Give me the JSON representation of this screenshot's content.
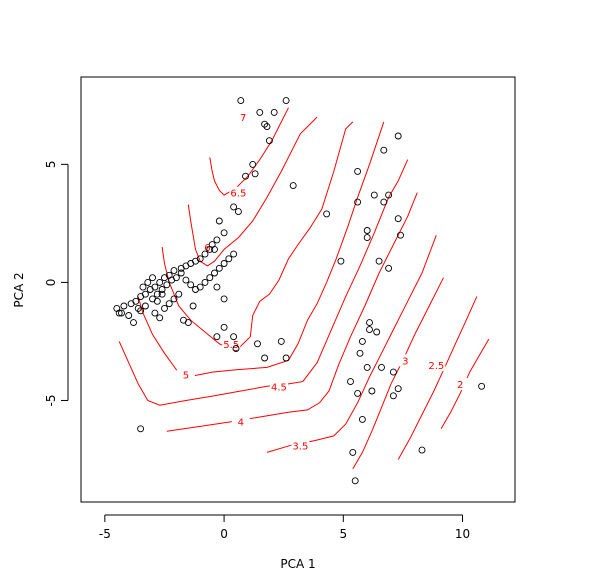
{
  "chart_data": {
    "type": "scatter",
    "title": "",
    "xlabel": "PCA 1",
    "ylabel": "PCA 2",
    "xlim": [
      -6.0,
      12.2
    ],
    "ylim": [
      -9.3,
      8.7
    ],
    "x_ticks": [
      -5,
      0,
      5,
      10
    ],
    "y_ticks": [
      -5,
      0,
      5
    ],
    "x_tick_labels": [
      "-5",
      "0",
      "5",
      "10"
    ],
    "y_tick_labels": [
      "-5",
      "0",
      "5"
    ],
    "grid": false,
    "point_color": "#000000",
    "contour_color": "#ff0000",
    "points": [
      [
        0.7,
        7.7
      ],
      [
        2.6,
        7.7
      ],
      [
        1.5,
        7.2
      ],
      [
        2.1,
        7.2
      ],
      [
        1.8,
        6.6
      ],
      [
        1.7,
        6.7
      ],
      [
        7.3,
        6.2
      ],
      [
        6.7,
        5.6
      ],
      [
        1.9,
        6.0
      ],
      [
        1.2,
        5.0
      ],
      [
        1.3,
        4.6
      ],
      [
        0.9,
        4.5
      ],
      [
        2.9,
        4.1
      ],
      [
        5.6,
        4.7
      ],
      [
        6.3,
        3.7
      ],
      [
        6.9,
        3.7
      ],
      [
        5.6,
        3.4
      ],
      [
        6.7,
        3.4
      ],
      [
        0.4,
        3.2
      ],
      [
        0.6,
        3.0
      ],
      [
        -0.2,
        2.6
      ],
      [
        4.3,
        2.9
      ],
      [
        7.3,
        2.7
      ],
      [
        6.0,
        2.2
      ],
      [
        6.0,
        1.9
      ],
      [
        7.4,
        2.0
      ],
      [
        0.0,
        2.1
      ],
      [
        -0.3,
        1.8
      ],
      [
        -0.5,
        1.6
      ],
      [
        -0.4,
        1.4
      ],
      [
        -0.6,
        1.4
      ],
      [
        -0.8,
        1.2
      ],
      [
        -1.0,
        1.0
      ],
      [
        -1.2,
        0.9
      ],
      [
        -1.4,
        0.8
      ],
      [
        -1.6,
        0.7
      ],
      [
        -1.8,
        0.6
      ],
      [
        -2.1,
        0.5
      ],
      [
        -2.3,
        0.3
      ],
      [
        -2.5,
        0.2
      ],
      [
        -2.7,
        0.0
      ],
      [
        -2.9,
        -0.2
      ],
      [
        -3.1,
        -0.3
      ],
      [
        -3.3,
        -0.5
      ],
      [
        -3.5,
        -0.6
      ],
      [
        -3.7,
        -0.8
      ],
      [
        -3.9,
        -0.9
      ],
      [
        -4.2,
        -1.0
      ],
      [
        -4.5,
        -1.1
      ],
      [
        -4.4,
        -1.3
      ],
      [
        -4.0,
        -1.4
      ],
      [
        -3.8,
        -1.7
      ],
      [
        -3.5,
        -1.2
      ],
      [
        -3.3,
        -1.0
      ],
      [
        -3.0,
        -0.7
      ],
      [
        -2.8,
        -0.5
      ],
      [
        -2.6,
        -0.3
      ],
      [
        -2.4,
        -0.1
      ],
      [
        -2.2,
        0.1
      ],
      [
        -2.0,
        0.2
      ],
      [
        -1.8,
        0.4
      ],
      [
        -1.6,
        0.1
      ],
      [
        -1.4,
        -0.1
      ],
      [
        -1.2,
        -0.3
      ],
      [
        -1.0,
        -0.2
      ],
      [
        -0.8,
        0.0
      ],
      [
        -0.6,
        0.2
      ],
      [
        -0.4,
        0.4
      ],
      [
        -0.2,
        0.6
      ],
      [
        0.0,
        0.8
      ],
      [
        0.2,
        1.0
      ],
      [
        0.4,
        1.2
      ],
      [
        -2.9,
        -1.3
      ],
      [
        -2.7,
        -1.5
      ],
      [
        -2.5,
        -1.1
      ],
      [
        -2.3,
        -0.9
      ],
      [
        -2.1,
        -0.7
      ],
      [
        -1.9,
        -0.5
      ],
      [
        -3.4,
        -0.2
      ],
      [
        -3.2,
        0.0
      ],
      [
        -3.0,
        0.2
      ],
      [
        -2.8,
        -0.8
      ],
      [
        -1.7,
        -1.6
      ],
      [
        -1.5,
        -1.7
      ],
      [
        -1.3,
        -1.0
      ],
      [
        0.0,
        -0.7
      ],
      [
        -0.3,
        -0.2
      ],
      [
        0.0,
        -1.9
      ],
      [
        -0.3,
        -2.3
      ],
      [
        0.4,
        -2.3
      ],
      [
        0.5,
        -2.8
      ],
      [
        1.4,
        -2.6
      ],
      [
        1.7,
        -3.2
      ],
      [
        2.4,
        -2.5
      ],
      [
        2.6,
        -3.2
      ],
      [
        4.9,
        0.9
      ],
      [
        6.5,
        0.9
      ],
      [
        6.9,
        0.6
      ],
      [
        6.1,
        -1.7
      ],
      [
        6.1,
        -2.0
      ],
      [
        6.4,
        -2.1
      ],
      [
        5.8,
        -2.5
      ],
      [
        5.7,
        -3.0
      ],
      [
        6.0,
        -3.6
      ],
      [
        6.6,
        -3.6
      ],
      [
        7.1,
        -3.8
      ],
      [
        5.3,
        -4.2
      ],
      [
        5.6,
        -4.7
      ],
      [
        6.2,
        -4.6
      ],
      [
        7.3,
        -4.5
      ],
      [
        7.1,
        -4.8
      ],
      [
        5.8,
        -5.8
      ],
      [
        5.4,
        -7.2
      ],
      [
        5.5,
        -8.4
      ],
      [
        8.3,
        -7.1
      ],
      [
        10.8,
        -4.4
      ],
      [
        -3.5,
        -6.2
      ],
      [
        -4.3,
        -1.3
      ],
      [
        -3.6,
        -1.1
      ],
      [
        -2.6,
        -0.5
      ]
    ],
    "contour_levels": [
      "2",
      "2.5",
      "3",
      "3.5",
      "4",
      "4.5",
      "5",
      "5.5",
      "6",
      "6.5",
      "7"
    ],
    "contours": [
      {
        "level": "7",
        "path": [
          [
            0.6,
            7.2
          ],
          [
            1.0,
            6.8
          ]
        ]
      },
      {
        "level": "6.5",
        "path": [
          [
            -0.6,
            5.3
          ],
          [
            -0.5,
            4.7
          ],
          [
            -0.4,
            4.3
          ],
          [
            -0.2,
            3.9
          ],
          [
            0.0,
            3.7
          ],
          [
            0.5,
            4.0
          ],
          [
            1.0,
            4.5
          ],
          [
            1.5,
            5.2
          ],
          [
            2.0,
            6.0
          ],
          [
            2.7,
            7.4
          ]
        ]
      },
      {
        "level": "6",
        "path": [
          [
            -1.5,
            3.3
          ],
          [
            -1.4,
            2.6
          ],
          [
            -1.3,
            2.0
          ],
          [
            -1.2,
            1.4
          ],
          [
            -1.0,
            0.9
          ],
          [
            -0.7,
            0.7
          ],
          [
            -0.4,
            0.9
          ],
          [
            0.0,
            1.4
          ],
          [
            0.6,
            1.9
          ],
          [
            1.2,
            2.6
          ],
          [
            1.8,
            3.6
          ],
          [
            2.4,
            4.7
          ],
          [
            3.2,
            6.3
          ],
          [
            3.9,
            7.0
          ]
        ]
      },
      {
        "level": "5.5",
        "path": [
          [
            -2.6,
            1.5
          ],
          [
            -2.5,
            0.8
          ],
          [
            -2.3,
            0.0
          ],
          [
            -1.9,
            -1.0
          ],
          [
            -1.4,
            -1.6
          ],
          [
            -0.8,
            -2.1
          ],
          [
            -0.2,
            -2.6
          ],
          [
            0.5,
            -2.9
          ],
          [
            1.1,
            -2.3
          ],
          [
            1.2,
            -1.4
          ],
          [
            1.5,
            -0.8
          ],
          [
            1.9,
            -0.5
          ],
          [
            2.3,
            0.1
          ],
          [
            2.7,
            1.0
          ],
          [
            3.1,
            1.6
          ],
          [
            3.6,
            2.3
          ],
          [
            4.1,
            3.1
          ],
          [
            4.6,
            4.7
          ],
          [
            5.1,
            6.5
          ],
          [
            5.4,
            6.8
          ]
        ]
      },
      {
        "level": "5",
        "path": [
          [
            -3.6,
            -0.6
          ],
          [
            -3.4,
            -1.3
          ],
          [
            -3.0,
            -2.2
          ],
          [
            -2.5,
            -3.0
          ],
          [
            -2.0,
            -3.7
          ],
          [
            -1.5,
            -4.0
          ],
          [
            -0.5,
            -3.8
          ],
          [
            0.5,
            -3.7
          ],
          [
            1.8,
            -3.6
          ],
          [
            2.7,
            -3.3
          ],
          [
            3.1,
            -2.6
          ],
          [
            3.5,
            -1.6
          ],
          [
            3.9,
            -0.9
          ],
          [
            4.3,
            0.0
          ],
          [
            4.7,
            1.0
          ],
          [
            5.2,
            2.4
          ],
          [
            5.6,
            3.6
          ],
          [
            6.1,
            5.0
          ],
          [
            6.7,
            6.8
          ]
        ]
      },
      {
        "level": "4.5",
        "path": [
          [
            -4.4,
            -2.5
          ],
          [
            -4.0,
            -3.4
          ],
          [
            -3.6,
            -4.3
          ],
          [
            -3.2,
            -5.0
          ],
          [
            -2.7,
            -5.2
          ],
          [
            -1.6,
            -5.0
          ],
          [
            -0.4,
            -4.8
          ],
          [
            0.7,
            -4.6
          ],
          [
            1.8,
            -4.4
          ],
          [
            2.7,
            -4.3
          ],
          [
            3.3,
            -4.2
          ],
          [
            3.9,
            -3.4
          ],
          [
            4.5,
            -2.0
          ],
          [
            5.1,
            -0.6
          ],
          [
            5.7,
            0.7
          ],
          [
            6.3,
            2.1
          ],
          [
            6.9,
            3.6
          ],
          [
            7.3,
            4.3
          ],
          [
            7.7,
            5.2
          ]
        ]
      },
      {
        "level": "4",
        "path": [
          [
            -2.4,
            -6.3
          ],
          [
            -1.0,
            -6.1
          ],
          [
            0.3,
            -5.9
          ],
          [
            1.5,
            -5.7
          ],
          [
            2.7,
            -5.5
          ],
          [
            3.5,
            -5.4
          ],
          [
            4.0,
            -5.1
          ],
          [
            4.4,
            -4.6
          ],
          [
            4.8,
            -3.5
          ],
          [
            5.3,
            -2.3
          ],
          [
            5.9,
            -1.0
          ],
          [
            6.5,
            0.4
          ],
          [
            7.1,
            1.6
          ],
          [
            7.7,
            2.8
          ],
          [
            8.1,
            3.8
          ]
        ]
      },
      {
        "level": "3.5",
        "path": [
          [
            1.8,
            -7.2
          ],
          [
            2.8,
            -6.9
          ],
          [
            3.8,
            -6.7
          ],
          [
            4.6,
            -6.5
          ],
          [
            5.1,
            -6.0
          ],
          [
            5.6,
            -5.1
          ],
          [
            6.1,
            -4.0
          ],
          [
            6.6,
            -3.0
          ],
          [
            7.1,
            -2.0
          ],
          [
            7.7,
            -0.8
          ],
          [
            8.3,
            0.4
          ],
          [
            8.9,
            2.0
          ]
        ]
      },
      {
        "level": "3",
        "path": [
          [
            5.4,
            -7.9
          ],
          [
            5.8,
            -7.2
          ],
          [
            6.2,
            -6.3
          ],
          [
            6.6,
            -5.3
          ],
          [
            7.0,
            -4.3
          ],
          [
            7.5,
            -3.3
          ],
          [
            8.0,
            -2.2
          ],
          [
            8.6,
            -1.0
          ],
          [
            9.2,
            0.2
          ]
        ]
      },
      {
        "level": "2.5",
        "path": [
          [
            7.3,
            -7.5
          ],
          [
            7.8,
            -6.6
          ],
          [
            8.3,
            -5.6
          ],
          [
            8.8,
            -4.6
          ],
          [
            9.3,
            -3.5
          ],
          [
            9.7,
            -2.6
          ],
          [
            10.2,
            -1.5
          ],
          [
            10.6,
            -0.6
          ]
        ]
      },
      {
        "level": "2",
        "path": [
          [
            9.1,
            -6.2
          ],
          [
            9.5,
            -5.5
          ],
          [
            9.9,
            -4.7
          ],
          [
            10.3,
            -3.8
          ],
          [
            10.7,
            -3.1
          ],
          [
            11.1,
            -2.4
          ]
        ]
      }
    ],
    "contour_labels": [
      {
        "text": "7",
        "at": [
          0.8,
          7.0
        ]
      },
      {
        "text": "6.5",
        "at": [
          0.6,
          3.8
        ]
      },
      {
        "text": "6",
        "at": [
          -0.7,
          1.5
        ]
      },
      {
        "text": "5.5",
        "at": [
          0.3,
          -2.6
        ]
      },
      {
        "text": "5",
        "at": [
          -1.6,
          -3.9
        ]
      },
      {
        "text": "4.5",
        "at": [
          2.3,
          -4.4
        ]
      },
      {
        "text": "4",
        "at": [
          0.7,
          -5.9
        ]
      },
      {
        "text": "3.5",
        "at": [
          3.2,
          -6.9
        ]
      },
      {
        "text": "3",
        "at": [
          7.6,
          -3.3
        ]
      },
      {
        "text": "2.5",
        "at": [
          8.9,
          -3.5
        ]
      },
      {
        "text": "2",
        "at": [
          9.9,
          -4.3
        ]
      }
    ]
  }
}
